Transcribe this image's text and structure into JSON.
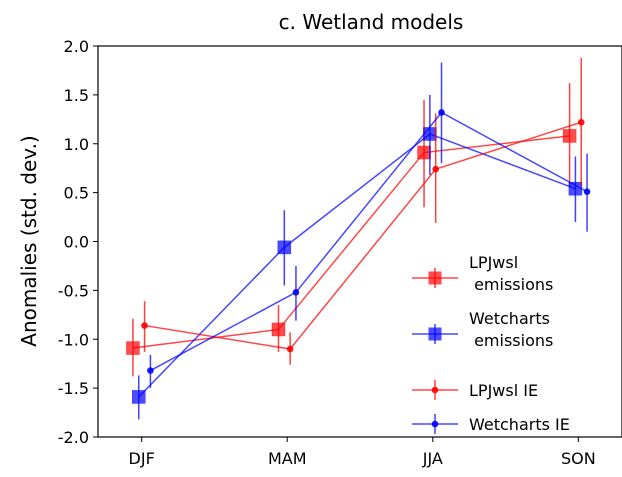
{
  "chart_data": {
    "type": "line",
    "title": "c. Wetland models",
    "xlabel": "",
    "ylabel": "Anomalies  (std. dev.)",
    "categories": [
      "DJF",
      "MAM",
      "JJA",
      "SON"
    ],
    "ylim": [
      -2.0,
      2.0
    ],
    "yticks": [
      "2.0",
      "1.5",
      "1.0",
      "0.5",
      "0.0",
      "-0.5",
      "-1.0",
      "-1.5",
      "-2.0"
    ],
    "ytick_values": [
      2.0,
      1.5,
      1.0,
      0.5,
      0.0,
      -0.5,
      -1.0,
      -1.5,
      -2.0
    ],
    "grid": false,
    "legend_position": "bottom-right",
    "series": [
      {
        "name": "LPJwsl\n emissions",
        "color": "#ff0000",
        "marker": "square",
        "offset": -0.06,
        "values": [
          -1.09,
          -0.9,
          0.91,
          1.08
        ],
        "err_low": [
          -1.38,
          -1.13,
          0.35,
          0.56
        ],
        "err_high": [
          -0.79,
          -0.65,
          1.45,
          1.62
        ]
      },
      {
        "name": "Wetcharts\n emissions",
        "color": "#0000ff",
        "marker": "square",
        "offset": -0.02,
        "values": [
          -1.59,
          -0.06,
          1.1,
          0.54
        ],
        "err_low": [
          -1.82,
          -0.45,
          0.68,
          0.2
        ],
        "err_high": [
          -1.37,
          0.32,
          1.5,
          0.87
        ]
      },
      {
        "name": "LPJwsl IE",
        "color": "#ff0000",
        "marker": "dot",
        "offset": 0.02,
        "values": [
          -0.86,
          -1.1,
          0.74,
          1.22
        ],
        "err_low": [
          -1.13,
          -1.26,
          0.19,
          0.57
        ],
        "err_high": [
          -0.61,
          -0.93,
          1.31,
          1.88
        ]
      },
      {
        "name": "Wetcharts IE",
        "color": "#0000ff",
        "marker": "dot",
        "offset": 0.06,
        "values": [
          -1.32,
          -0.52,
          1.32,
          0.51
        ],
        "err_low": [
          -1.5,
          -0.81,
          0.8,
          0.1
        ],
        "err_high": [
          -1.16,
          -0.25,
          1.83,
          0.9
        ]
      }
    ]
  }
}
